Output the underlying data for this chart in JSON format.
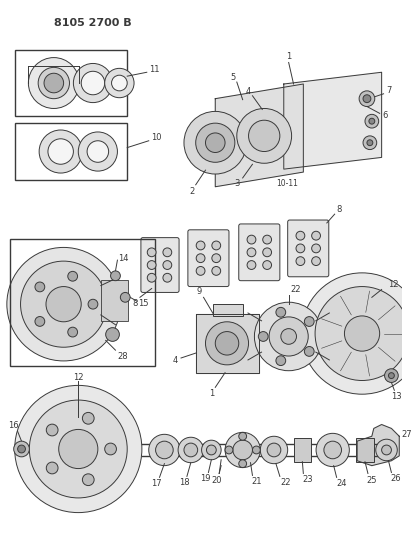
{
  "title": "8105 2700 B",
  "bg_color": "#ffffff",
  "lc": "#3a3a3a",
  "fig_width": 4.11,
  "fig_height": 5.33,
  "dpi": 100
}
